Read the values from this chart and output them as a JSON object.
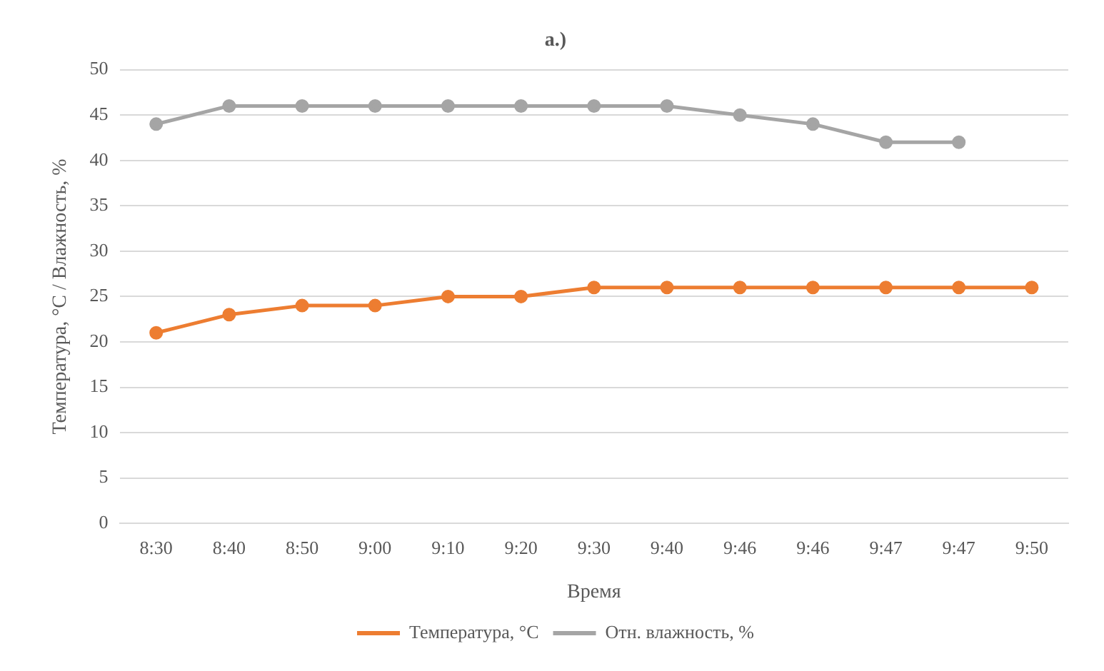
{
  "chart_data": {
    "type": "line",
    "title": "а.)",
    "xlabel": "Время",
    "ylabel": "Температура, °C / Влажность, %",
    "categories": [
      "8:30",
      "8:40",
      "8:50",
      "9:00",
      "9:10",
      "9:20",
      "9:30",
      "9:40",
      "9:46",
      "9:46",
      "9:47",
      "9:47",
      "9:50"
    ],
    "series": [
      {
        "name": "Температура, °C",
        "color": "#ed7d31",
        "values": [
          21,
          23,
          24,
          24,
          25,
          25,
          26,
          26,
          26,
          26,
          26,
          26,
          26
        ]
      },
      {
        "name": "Отн. влажность, %",
        "color": "#a5a5a5",
        "values": [
          44,
          46,
          46,
          46,
          46,
          46,
          46,
          46,
          45,
          44,
          42,
          42,
          null
        ]
      }
    ],
    "ylim": [
      0,
      50
    ],
    "yticks": [
      0,
      5,
      10,
      15,
      20,
      25,
      30,
      35,
      40,
      45,
      50
    ],
    "grid": "y",
    "legend": "bottom",
    "marker": "circle",
    "line_style": "solid"
  }
}
